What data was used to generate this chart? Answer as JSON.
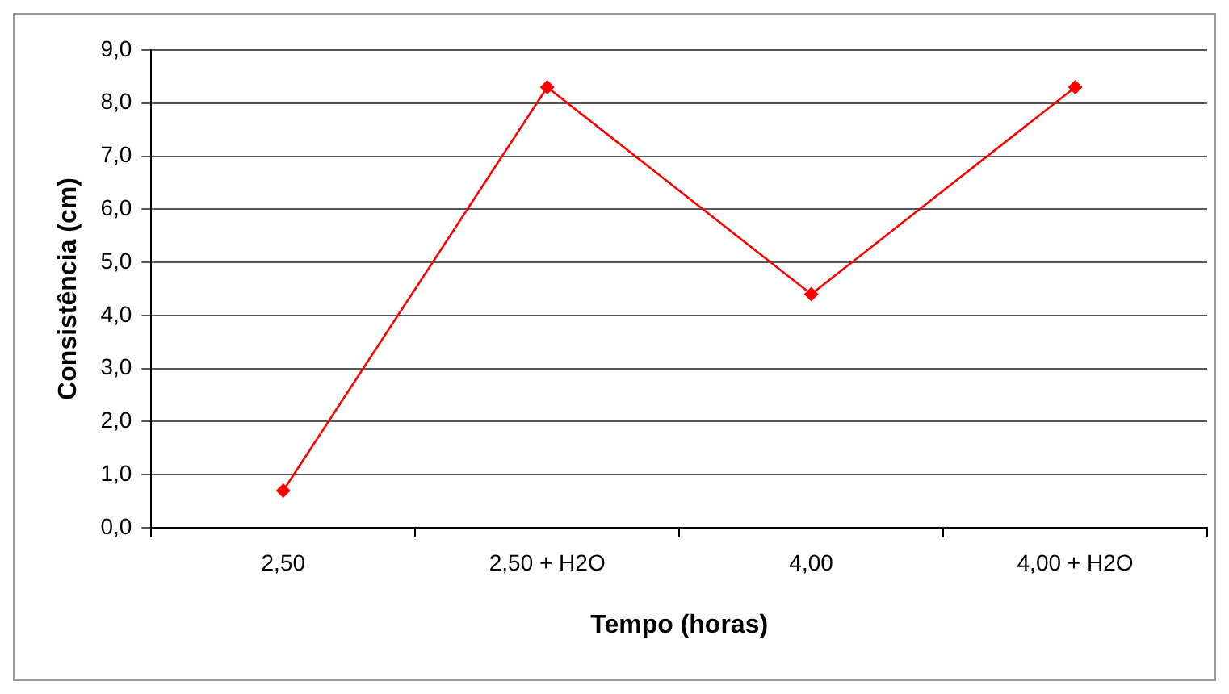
{
  "chart_data": {
    "type": "line",
    "xlabel": "Tempo (horas)",
    "ylabel": "Consistência (cm)",
    "categories": [
      "2,50",
      "2,50 + H2O",
      "4,00",
      "4,00 + H2O"
    ],
    "series": [
      {
        "color": "#ff0000",
        "values": [
          0.7,
          8.3,
          4.4,
          8.3
        ]
      }
    ],
    "ylim": [
      0,
      9
    ],
    "yticks": [
      {
        "value": 0,
        "label": "0,0"
      },
      {
        "value": 1,
        "label": "1,0"
      },
      {
        "value": 2,
        "label": "2,0"
      },
      {
        "value": 3,
        "label": "3,0"
      },
      {
        "value": 4,
        "label": "4,0"
      },
      {
        "value": 5,
        "label": "5,0"
      },
      {
        "value": 6,
        "label": "6,0"
      },
      {
        "value": 7,
        "label": "7,0"
      },
      {
        "value": 8,
        "label": "8,0"
      },
      {
        "value": 9,
        "label": "9,0"
      }
    ],
    "grid": "y",
    "legend": false,
    "marker": "diamond",
    "line_style": "solid"
  }
}
